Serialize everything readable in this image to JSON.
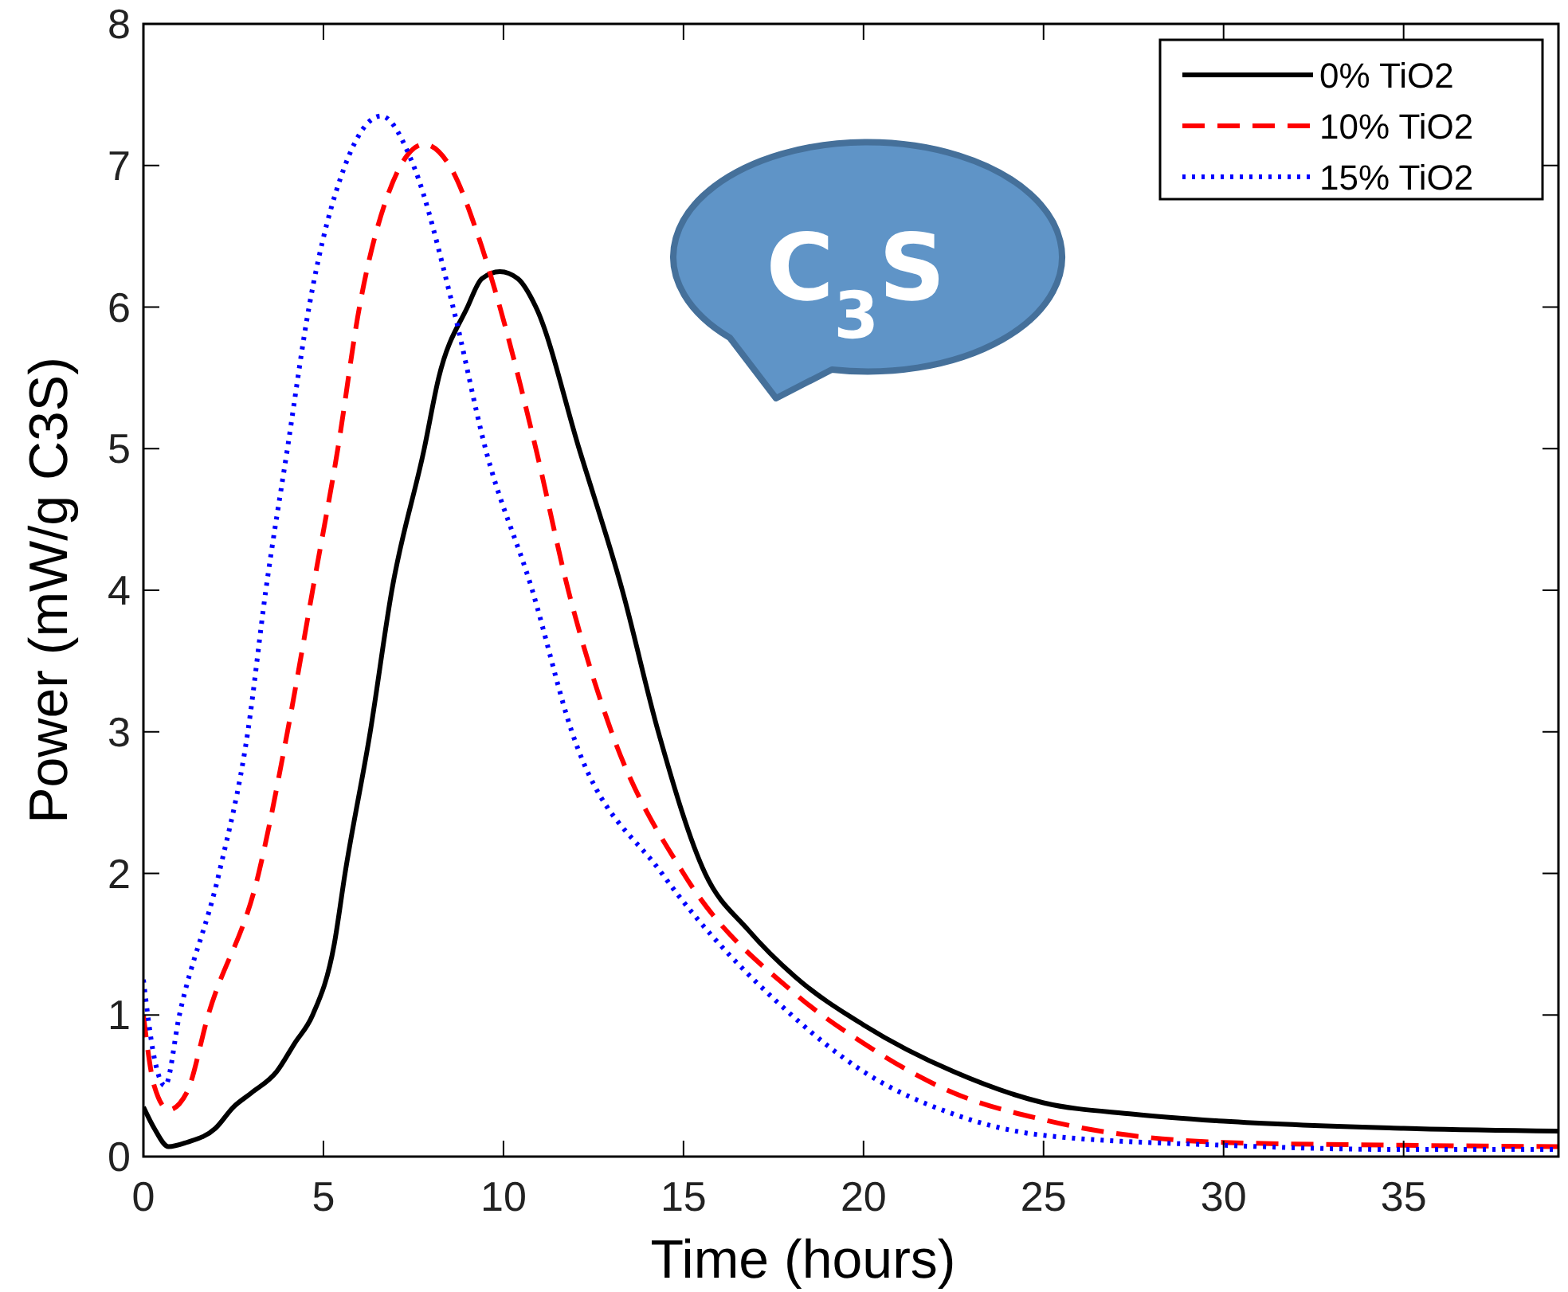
{
  "chart_data": {
    "type": "line",
    "xlabel": "Time (hours)",
    "ylabel": "Power (mW/g C3S)",
    "xlim": [
      0,
      39.3
    ],
    "ylim": [
      0,
      8
    ],
    "xticks": [
      0,
      5,
      10,
      15,
      20,
      25,
      30,
      35
    ],
    "yticks": [
      0,
      1,
      2,
      3,
      4,
      5,
      6,
      7,
      8
    ],
    "legend": "top right",
    "annotations": [
      "C$_{3}$S"
    ],
    "series": [
      {
        "name": "0% TiO2",
        "color": "#000000",
        "line_style": "solid",
        "x": [
          0,
          0.3,
          0.7,
          1.2,
          2,
          2.5,
          3,
          3.7,
          4.2,
          4.7,
          5.3,
          5.6,
          6.3,
          6.9,
          7.8,
          8.2,
          9.0,
          9.4,
          9.9,
          10.4,
          10.9,
          12.1,
          13.3,
          14.3,
          15.6,
          16.8,
          18.1,
          20,
          22.5,
          25,
          27.5,
          30,
          35,
          39.3
        ],
        "values": [
          0.35,
          0.2,
          0.07,
          0.1,
          0.2,
          0.35,
          0.45,
          0.6,
          0.8,
          1.0,
          1.5,
          2.0,
          3.0,
          4.0,
          5.0,
          5.5,
          6.0,
          6.2,
          6.25,
          6.2,
          6.0,
          5.0,
          4.0,
          3.0,
          2.0,
          1.6,
          1.27,
          0.93,
          0.6,
          0.38,
          0.3,
          0.25,
          0.2,
          0.18
        ]
      },
      {
        "name": "10% TiO2",
        "color": "#ff0000",
        "line_style": "dashed",
        "x": [
          0,
          0.3,
          0.7,
          1.2,
          1.8,
          3.2,
          4.0,
          4.7,
          5.4,
          6.0,
          6.8,
          7.8,
          8.5,
          9.3,
          9.9,
          10.9,
          11.8,
          13.0,
          15.0,
          18.1,
          20,
          22.5,
          25,
          30,
          35,
          39.3
        ],
        "values": [
          1.0,
          0.5,
          0.33,
          0.45,
          1.0,
          2.0,
          3.0,
          4.0,
          5.0,
          6.0,
          6.8,
          7.15,
          7.0,
          6.5,
          6.0,
          5.0,
          4.0,
          3.0,
          2.0,
          1.15,
          0.8,
          0.45,
          0.26,
          0.1,
          0.08,
          0.07
        ]
      },
      {
        "name": "15% TiO2",
        "color": "#0000ff",
        "line_style": "dotted",
        "x": [
          0,
          0.3,
          0.6,
          1.0,
          2.1,
          2.9,
          3.4,
          4.0,
          4.6,
          5.6,
          6.6,
          7.5,
          8.6,
          9.5,
          10.8,
          11.9,
          14.4,
          18.0,
          20,
          22.5,
          25,
          30,
          35,
          39.3
        ],
        "values": [
          1.25,
          0.7,
          0.5,
          1.0,
          2.0,
          3.0,
          4.0,
          5.0,
          6.0,
          7.0,
          7.35,
          7.0,
          6.0,
          5.0,
          4.0,
          3.0,
          2.0,
          1.0,
          0.6,
          0.3,
          0.15,
          0.08,
          0.05,
          0.05
        ]
      }
    ]
  }
}
